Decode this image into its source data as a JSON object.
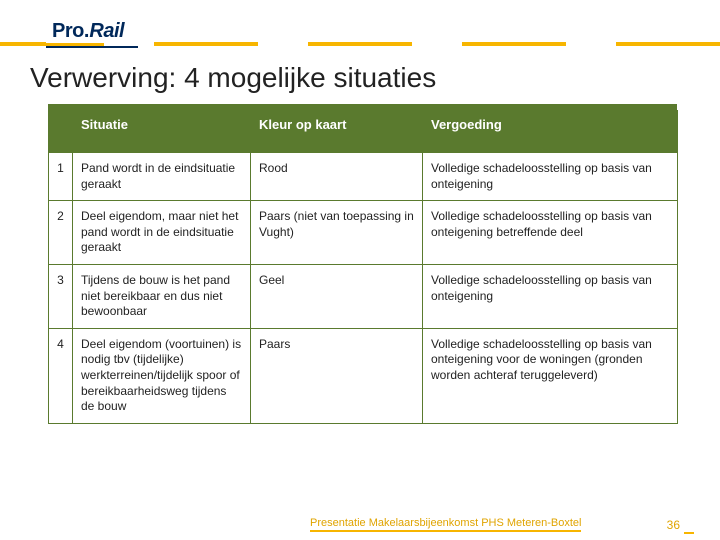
{
  "brand": {
    "pro": "Pro",
    "dot": ".",
    "rail": "Rail"
  },
  "accent_yellow": "#f7b500",
  "accent_green": "#5a7a2e",
  "brand_navy": "#00285a",
  "title": "Verwerving: 4 mogelijke situaties",
  "table": {
    "columns": [
      "Situatie",
      "Kleur op kaart",
      "Vergoeding"
    ],
    "rows": [
      {
        "n": "1",
        "situatie": "Pand wordt in de eindsituatie geraakt",
        "kleur": "Rood",
        "vergoeding": "Volledige schadeloosstelling op basis van onteigening"
      },
      {
        "n": "2",
        "situatie": "Deel eigendom, maar niet het pand wordt in de eindsituatie geraakt",
        "kleur": "Paars (niet van toepassing in Vught)",
        "vergoeding": "Volledige schadeloosstelling op basis van onteigening betreffende deel"
      },
      {
        "n": "3",
        "situatie": "Tijdens de bouw is het pand niet bereikbaar en dus niet bewoonbaar",
        "kleur": "Geel",
        "vergoeding": "Volledige schadeloosstelling op basis van onteigening"
      },
      {
        "n": "4",
        "situatie": "Deel eigendom (voortuinen) is nodig tbv (tijdelijke) werkterreinen/tijdelijk spoor of bereikbaarheidsweg tijdens de bouw",
        "kleur": "Paars",
        "vergoeding": "Volledige schadeloosstelling op basis van onteigening voor de woningen (gronden worden achteraf teruggeleverd)"
      }
    ]
  },
  "footer": {
    "note": "Presentatie Makelaarsbijeenkomst PHS Meteren-Boxtel",
    "page": "36"
  }
}
